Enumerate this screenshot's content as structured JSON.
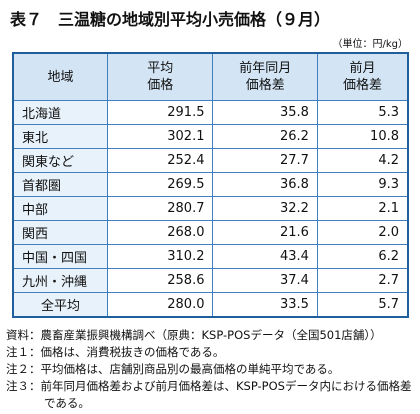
{
  "title": "表７　三温糖の地域別平均小売価格（９月）",
  "unit": "（単位：円/kg）",
  "table": {
    "header": [
      [
        "地域"
      ],
      [
        "平均",
        "価格"
      ],
      [
        "前年同月",
        "価格差"
      ],
      [
        "前月",
        "価格差"
      ]
    ],
    "rows": [
      [
        "北海道",
        "291.5",
        "35.8",
        "5.3"
      ],
      [
        "東北",
        "302.1",
        "26.2",
        "10.8"
      ],
      [
        "関東など",
        "252.4",
        "27.7",
        "4.2"
      ],
      [
        "首都圏",
        "269.5",
        "36.8",
        "9.3"
      ],
      [
        "中部",
        "280.7",
        "32.2",
        "2.1"
      ],
      [
        "関西",
        "268.0",
        "21.6",
        "2.0"
      ],
      [
        "中国・四国",
        "310.2",
        "43.4",
        "6.2"
      ],
      [
        "九州・沖縄",
        "258.6",
        "37.4",
        "2.7"
      ],
      [
        "全平均",
        "280.0",
        "33.5",
        "5.7"
      ]
    ]
  },
  "notes": [
    "資料：農畜産業振興機構調べ（原典：KSP-POSデータ（全国501店舗））",
    "注１：価格は、消費税抜きの価格である。",
    "注２：平均価格は、店舗別商品別の最高価格の単純平均である。",
    "注３：前年同月価格差および前月価格差は、KSP-POSデータ内における価格差である。"
  ]
}
